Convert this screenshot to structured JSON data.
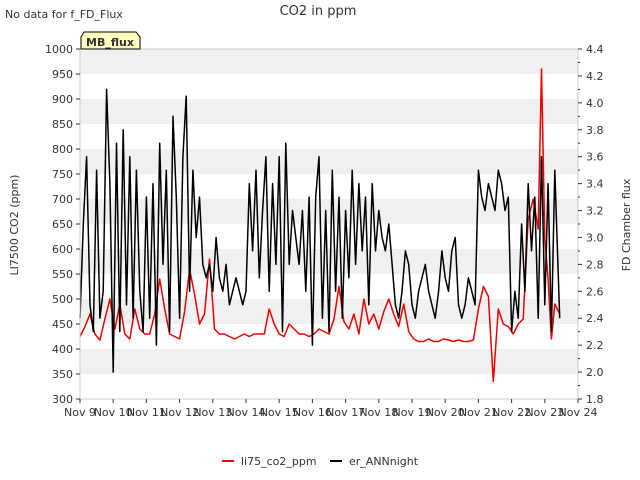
{
  "page": {
    "status_text": "No data for f_FD_Flux",
    "badge_label": "MB_flux"
  },
  "colors": {
    "li75": "#ee0000",
    "ann": "#000000",
    "band": "#f0f0f0",
    "badge_fill": "#ffffc0",
    "badge_text": "#8b0000"
  },
  "chart_data": {
    "type": "line",
    "title": "CO2 in ppm",
    "xlabel": "",
    "ylabel": "LI7500 CO2 (ppm)",
    "y2label": "FD Chamber flux",
    "xlim": [
      9,
      24
    ],
    "ylim": [
      300,
      1000
    ],
    "y2lim": [
      1.8,
      4.4
    ],
    "x_ticks": [
      9,
      10,
      11,
      12,
      13,
      14,
      15,
      16,
      17,
      18,
      19,
      20,
      21,
      22,
      23,
      24
    ],
    "x_tick_labels": [
      "Nov 9",
      "Nov 10",
      "Nov 11",
      "Nov 12",
      "Nov 13",
      "Nov 14",
      "Nov 15",
      "Nov 16",
      "Nov 17",
      "Nov 18",
      "Nov 19",
      "Nov 20",
      "Nov 21",
      "Nov 22",
      "Nov 23",
      "Nov 24"
    ],
    "y_ticks": [
      300,
      350,
      400,
      450,
      500,
      550,
      600,
      650,
      700,
      750,
      800,
      850,
      900,
      950,
      1000
    ],
    "y2_ticks": [
      1.8,
      2.0,
      2.2,
      2.4,
      2.6,
      2.8,
      3.0,
      3.2,
      3.4,
      3.6,
      3.8,
      4.0,
      4.2,
      4.4
    ],
    "grid": "horizontal bands",
    "legend_position": "bottom-center",
    "series": [
      {
        "name": "li75_co2_ppm",
        "axis": "left",
        "x": [
          9.0,
          9.15,
          9.3,
          9.45,
          9.6,
          9.75,
          9.9,
          10.05,
          10.2,
          10.35,
          10.5,
          10.65,
          10.8,
          10.95,
          11.1,
          11.25,
          11.4,
          11.55,
          11.7,
          11.85,
          12.0,
          12.15,
          12.3,
          12.45,
          12.6,
          12.75,
          12.9,
          13.05,
          13.2,
          13.35,
          13.5,
          13.65,
          13.8,
          13.95,
          14.1,
          14.25,
          14.4,
          14.55,
          14.7,
          14.85,
          15.0,
          15.15,
          15.3,
          15.45,
          15.6,
          15.75,
          15.9,
          16.05,
          16.2,
          16.35,
          16.5,
          16.65,
          16.8,
          16.95,
          17.1,
          17.25,
          17.4,
          17.55,
          17.7,
          17.85,
          18.0,
          18.15,
          18.3,
          18.45,
          18.6,
          18.75,
          18.9,
          19.05,
          19.2,
          19.35,
          19.5,
          19.65,
          19.8,
          19.95,
          20.1,
          20.25,
          20.4,
          20.55,
          20.7,
          20.85,
          21.0,
          21.15,
          21.3,
          21.45,
          21.6,
          21.75,
          21.9,
          22.05,
          22.2,
          22.35,
          22.5,
          22.65,
          22.8,
          22.9,
          23.0,
          23.1,
          23.2,
          23.3,
          23.45
        ],
        "values": [
          425,
          445,
          470,
          430,
          418,
          460,
          500,
          440,
          490,
          430,
          420,
          480,
          440,
          430,
          430,
          470,
          540,
          480,
          430,
          425,
          420,
          475,
          560,
          510,
          450,
          470,
          580,
          440,
          430,
          430,
          425,
          420,
          425,
          430,
          425,
          430,
          430,
          430,
          480,
          450,
          430,
          425,
          450,
          440,
          430,
          430,
          425,
          430,
          440,
          435,
          430,
          460,
          525,
          455,
          440,
          470,
          430,
          500,
          450,
          470,
          440,
          475,
          500,
          470,
          445,
          490,
          435,
          420,
          415,
          415,
          420,
          415,
          415,
          420,
          418,
          415,
          418,
          415,
          415,
          418,
          480,
          525,
          505,
          335,
          480,
          450,
          445,
          430,
          450,
          460,
          660,
          700,
          640,
          960,
          620,
          540,
          420,
          490,
          470
        ]
      },
      {
        "name": "er_ANNnight",
        "axis": "right",
        "x": [
          9.0,
          9.1,
          9.2,
          9.3,
          9.4,
          9.5,
          9.6,
          9.7,
          9.8,
          9.9,
          10.0,
          10.1,
          10.2,
          10.3,
          10.4,
          10.5,
          10.6,
          10.7,
          10.8,
          10.9,
          11.0,
          11.1,
          11.2,
          11.3,
          11.4,
          11.5,
          11.6,
          11.7,
          11.8,
          11.9,
          12.0,
          12.1,
          12.2,
          12.3,
          12.4,
          12.5,
          12.6,
          12.7,
          12.8,
          12.9,
          13.0,
          13.1,
          13.2,
          13.3,
          13.4,
          13.5,
          13.6,
          13.7,
          13.8,
          13.9,
          14.0,
          14.1,
          14.2,
          14.3,
          14.4,
          14.5,
          14.6,
          14.7,
          14.8,
          14.9,
          15.0,
          15.1,
          15.2,
          15.3,
          15.4,
          15.5,
          15.6,
          15.7,
          15.8,
          15.9,
          16.0,
          16.1,
          16.2,
          16.3,
          16.4,
          16.5,
          16.6,
          16.7,
          16.8,
          16.9,
          17.0,
          17.1,
          17.2,
          17.3,
          17.4,
          17.5,
          17.6,
          17.7,
          17.8,
          17.9,
          18.0,
          18.1,
          18.2,
          18.3,
          18.4,
          18.5,
          18.6,
          18.7,
          18.8,
          18.9,
          19.0,
          19.1,
          19.2,
          19.3,
          19.4,
          19.5,
          19.6,
          19.7,
          19.8,
          19.9,
          20.0,
          20.1,
          20.2,
          20.3,
          20.4,
          20.5,
          20.6,
          20.7,
          20.8,
          20.9,
          21.0,
          21.1,
          21.2,
          21.3,
          21.4,
          21.5,
          21.6,
          21.7,
          21.8,
          21.9,
          22.0,
          22.1,
          22.2,
          22.3,
          22.4,
          22.5,
          22.6,
          22.7,
          22.8,
          22.9,
          23.0,
          23.1,
          23.2,
          23.3,
          23.45
        ],
        "values": [
          2.4,
          3.1,
          3.6,
          2.5,
          2.3,
          3.5,
          2.4,
          2.6,
          4.1,
          3.4,
          2.0,
          3.7,
          2.3,
          3.8,
          2.5,
          3.6,
          2.4,
          3.5,
          2.6,
          2.3,
          3.3,
          2.4,
          3.4,
          2.2,
          3.7,
          2.8,
          3.5,
          2.3,
          3.9,
          3.3,
          2.4,
          3.6,
          4.05,
          2.6,
          3.5,
          3.0,
          3.3,
          2.8,
          2.7,
          2.8,
          2.6,
          3.0,
          2.7,
          2.6,
          2.8,
          2.5,
          2.6,
          2.7,
          2.6,
          2.5,
          2.6,
          3.4,
          2.9,
          3.5,
          2.7,
          3.2,
          3.6,
          2.6,
          3.4,
          2.8,
          3.6,
          2.3,
          3.7,
          2.8,
          3.2,
          3.0,
          2.8,
          3.2,
          2.6,
          3.3,
          2.2,
          3.3,
          3.6,
          2.4,
          3.2,
          2.3,
          3.5,
          2.6,
          3.3,
          2.4,
          3.2,
          2.7,
          3.5,
          2.8,
          3.4,
          2.9,
          3.3,
          2.5,
          3.4,
          2.9,
          3.2,
          3.0,
          2.9,
          3.1,
          2.8,
          2.5,
          2.4,
          2.6,
          2.9,
          2.8,
          2.5,
          2.4,
          2.6,
          2.7,
          2.8,
          2.6,
          2.5,
          2.4,
          2.6,
          2.9,
          2.7,
          2.6,
          2.9,
          3.0,
          2.5,
          2.4,
          2.5,
          2.7,
          2.6,
          2.5,
          3.5,
          3.3,
          3.2,
          3.4,
          3.3,
          3.2,
          3.5,
          3.4,
          3.2,
          3.3,
          2.3,
          2.6,
          2.4,
          3.1,
          2.6,
          3.4,
          2.9,
          3.3,
          2.4,
          3.6,
          2.5,
          3.4,
          2.3,
          3.5,
          2.4
        ]
      }
    ]
  }
}
